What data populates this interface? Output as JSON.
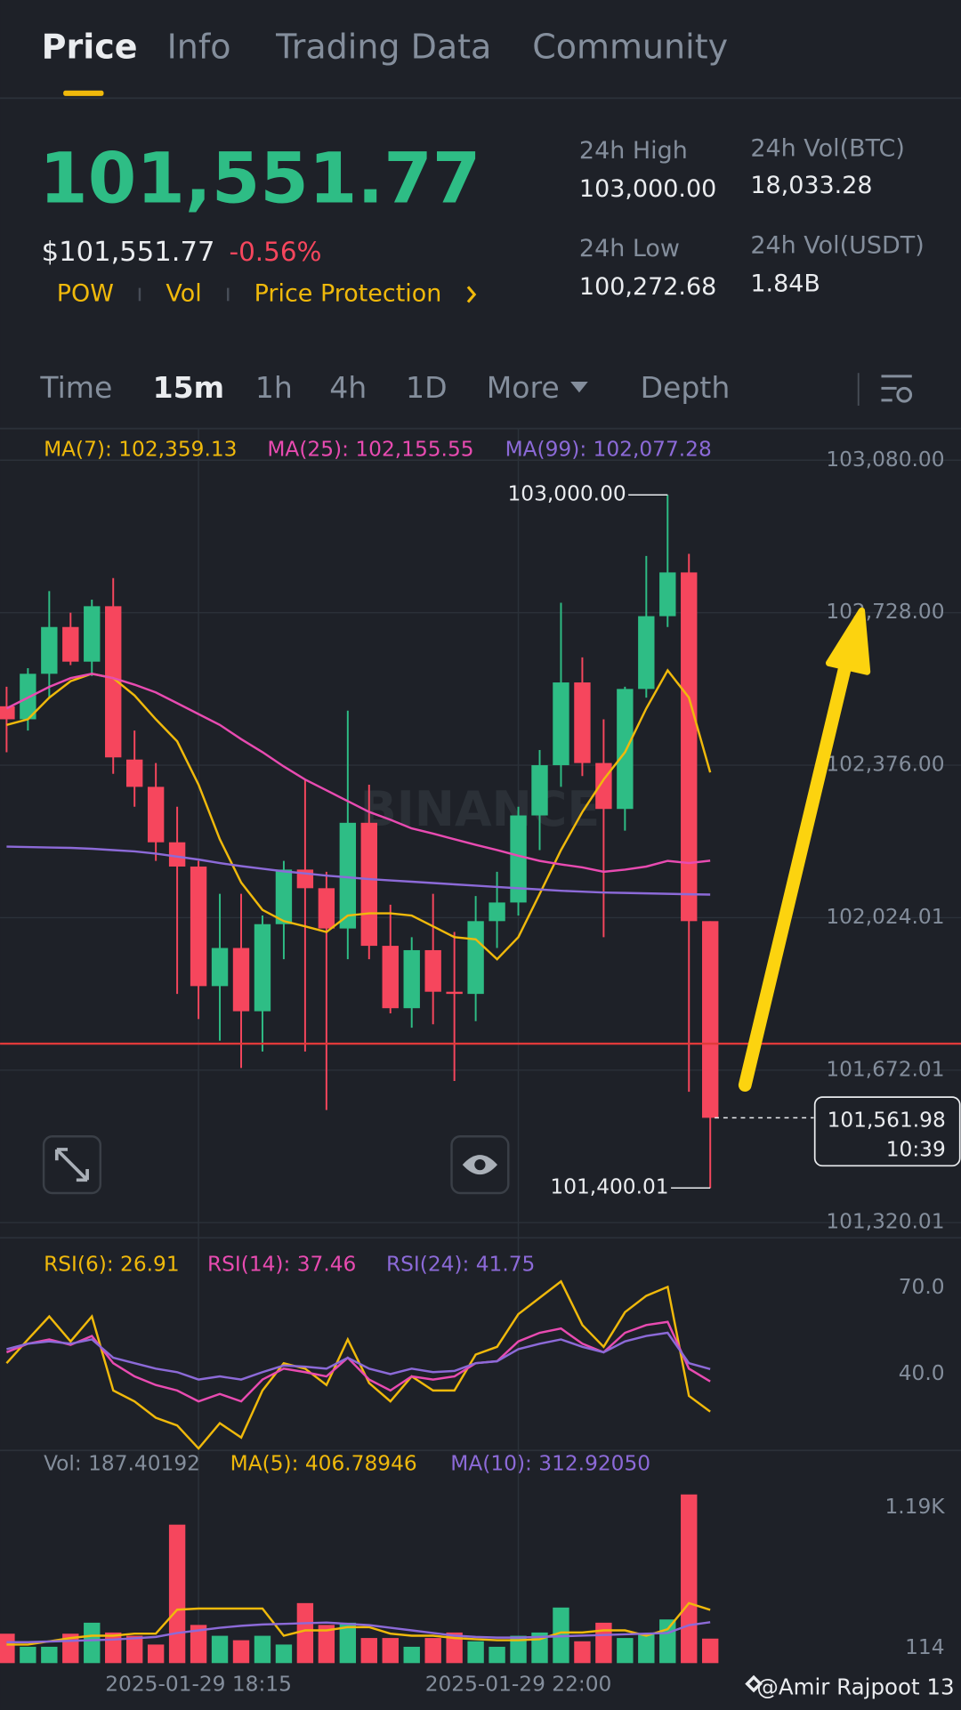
{
  "tabs": [
    "Price",
    "Info",
    "Trading Data",
    "Community"
  ],
  "price": {
    "last": "101,551.77",
    "usd": "$101,551.77",
    "change": "-0.56%"
  },
  "tags": [
    "POW",
    "Vol",
    "Price Protection"
  ],
  "stats": [
    {
      "label": "24h High",
      "value": "103,000.00"
    },
    {
      "label": "24h Low",
      "value": "100,272.68"
    },
    {
      "label": "24h Vol(BTC)",
      "value": "18,033.28"
    },
    {
      "label": "24h Vol(USDT)",
      "value": "1.84B"
    }
  ],
  "intervals": [
    "Time",
    "15m",
    "1h",
    "4h",
    "1D",
    "More",
    "Depth"
  ],
  "watermark": "BINANCE",
  "credit": "@Amir Rajpoot 13",
  "chart_data": [
    {
      "type": "candlestick",
      "up_color": "#2ebd85",
      "down_color": "#f6465d",
      "ohlc": {
        "open": [
          102512,
          102482,
          102587,
          102695,
          102615,
          102743,
          102389,
          102326,
          102198,
          102142,
          101866,
          101954,
          101808,
          102009,
          102135,
          102092,
          101999,
          102243,
          101959,
          101815,
          101949,
          101853,
          101848,
          102016,
          102059,
          102260,
          102376,
          102567,
          102381,
          102275,
          102552,
          102720,
          102821,
          102016
        ],
        "high": [
          102557,
          102600,
          102778,
          102728,
          102758,
          102808,
          102456,
          102381,
          102280,
          102155,
          102079,
          102079,
          102029,
          102155,
          102343,
          102130,
          102502,
          102331,
          102054,
          101979,
          102079,
          101991,
          102074,
          102130,
          102280,
          102411,
          102751,
          102625,
          102482,
          102557,
          102859,
          103000,
          102864,
          102016
        ],
        "low": [
          102406,
          102456,
          102532,
          102607,
          102582,
          102356,
          102280,
          102155,
          101848,
          101790,
          101740,
          101677,
          101715,
          101928,
          101715,
          101580,
          101928,
          101928,
          101803,
          101770,
          101778,
          101647,
          101785,
          101954,
          102029,
          102180,
          102326,
          102351,
          101979,
          102225,
          102532,
          102695,
          101622,
          101400.01
        ],
        "close": [
          102482,
          102587,
          102695,
          102615,
          102743,
          102394,
          102326,
          102198,
          102142,
          101866,
          101954,
          101808,
          102009,
          102135,
          102092,
          101999,
          102243,
          101959,
          101815,
          101949,
          101853,
          101848,
          102016,
          102059,
          102260,
          102376,
          102567,
          102381,
          102275,
          102552,
          102720,
          102821,
          102016,
          101561.98
        ]
      },
      "series": [
        {
          "name": "MA(7): 102,359.13",
          "color": "#f0b90b",
          "values": [
            102469,
            102482,
            102532,
            102570,
            102587,
            102577,
            102537,
            102482,
            102431,
            102331,
            102205,
            102105,
            102042,
            102016,
            102004,
            101991,
            102029,
            102034,
            102034,
            102029,
            102004,
            101979,
            101974,
            101928,
            101979,
            102079,
            102180,
            102268,
            102343,
            102406,
            102507,
            102595,
            102532,
            102359.13
          ]
        },
        {
          "name": "MA(25): 102,155.55",
          "color": "#e84bb1",
          "values": [
            102507,
            102532,
            102557,
            102577,
            102587,
            102577,
            102562,
            102544,
            102519,
            102494,
            102469,
            102436,
            102406,
            102373,
            102343,
            102318,
            102293,
            102268,
            102250,
            102230,
            102218,
            102205,
            102192,
            102180,
            102167,
            102155,
            102147,
            102140,
            102130,
            102135,
            102142,
            102155,
            102150,
            102155.55
          ]
        },
        {
          "name": "MA(99): 102,077.28",
          "color": "#8c6ad8",
          "values": [
            102188,
            102187,
            102186,
            102185,
            102183,
            102180,
            102177,
            102172,
            102165,
            102158,
            102150,
            102143,
            102137,
            102131,
            102126,
            102121,
            102117,
            102113,
            102110,
            102107,
            102104,
            102101,
            102098,
            102095,
            102092,
            102089,
            102086,
            102084,
            102082,
            102081,
            102080,
            102079,
            102078,
            102077.28
          ]
        }
      ],
      "annotations": [
        "103,000.00",
        "101,400.01"
      ],
      "last_price": {
        "label": "101,561.98",
        "time": "10:39"
      },
      "ylim": [
        101285,
        103148
      ],
      "yticks": [
        {
          "value": 103080,
          "label": "103,080.00"
        },
        {
          "value": 102728,
          "label": "102,728.00"
        },
        {
          "value": 102376,
          "label": "102,376.00"
        },
        {
          "value": 102024.01,
          "label": "102,024.01"
        },
        {
          "value": 101672.01,
          "label": "101,672.01"
        },
        {
          "value": 101320.01,
          "label": "101,320.01"
        }
      ],
      "grid": true
    },
    {
      "type": "line",
      "series": [
        {
          "name": "RSI(6): 26.91",
          "color": "#f0b90b",
          "values": [
            43.8,
            52.1,
            60.1,
            51.4,
            60.1,
            34.3,
            30.5,
            24.8,
            22.1,
            14.1,
            22.9,
            17.9,
            34.3,
            43.8,
            41.9,
            36.2,
            52.1,
            36.9,
            30.5,
            39.2,
            34.3,
            34.3,
            46.8,
            49.5,
            60.9,
            66.6,
            72.3,
            57.1,
            49.5,
            61.6,
            67.3,
            70.4,
            32.4,
            26.91
          ]
        },
        {
          "name": "RSI(14): 37.46",
          "color": "#e84bb1",
          "values": [
            47.6,
            50.6,
            52.1,
            50.2,
            53.3,
            43.8,
            39.2,
            36.2,
            34.3,
            30.5,
            33.1,
            30.5,
            38.1,
            41.9,
            40.7,
            39.2,
            45.7,
            38.1,
            34.3,
            39.2,
            38.1,
            39.2,
            43.8,
            44.5,
            51.4,
            54.4,
            55.9,
            50.6,
            47.6,
            54.4,
            57.1,
            58.2,
            41.9,
            37.46
          ]
        },
        {
          "name": "RSI(24): 41.75",
          "color": "#8c6ad8",
          "values": [
            48.7,
            50.6,
            51.4,
            50.6,
            52.1,
            45.7,
            43.8,
            41.9,
            40.7,
            38.1,
            39.2,
            38.1,
            40.7,
            43.0,
            42.6,
            41.9,
            45.7,
            41.9,
            40.0,
            41.9,
            40.7,
            41.1,
            43.8,
            44.5,
            48.7,
            50.6,
            52.1,
            49.5,
            47.6,
            51.4,
            53.3,
            54.4,
            43.8,
            41.75
          ]
        }
      ],
      "ylim": [
        13.4,
        85.6
      ],
      "yticks": [
        {
          "value": 70,
          "label": "70.0"
        },
        {
          "value": 40,
          "label": "40.0"
        }
      ]
    },
    {
      "type": "bar",
      "categories": [
        null,
        null,
        null,
        null,
        null,
        null,
        null,
        null,
        null,
        "2025-01-29 18:15",
        null,
        null,
        null,
        null,
        null,
        null,
        null,
        null,
        null,
        null,
        null,
        null,
        null,
        null,
        "2025-01-29 22:00",
        null,
        null,
        null,
        null,
        null,
        null,
        null,
        null,
        null
      ],
      "series": [
        {
          "name": "Vol: 187.40192",
          "values": [
            225,
            125,
            125,
            225,
            309,
            234,
            209,
            142,
            1059,
            292,
            209,
            175,
            209,
            142,
            459,
            292,
            309,
            192,
            192,
            125,
            192,
            234,
            167,
            125,
            209,
            234,
            425,
            167,
            309,
            192,
            225,
            334,
            1290,
            187.40192
          ]
        },
        {
          "name": "MA(5): 406.78946",
          "color": "#f0b90b",
          "values": [
            142,
            142,
            167,
            192,
            209,
            209,
            225,
            225,
            409,
            417,
            417,
            417,
            417,
            209,
            250,
            250,
            275,
            275,
            225,
            209,
            209,
            192,
            183,
            175,
            175,
            183,
            234,
            234,
            250,
            250,
            209,
            259,
            459,
            406.78946
          ]
        },
        {
          "name": "MA(10): 312.92050",
          "color": "#8c6ad8",
          "values": [
            160,
            160,
            165,
            170,
            175,
            180,
            190,
            200,
            230,
            250,
            270,
            285,
            295,
            300,
            305,
            310,
            300,
            290,
            270,
            250,
            230,
            210,
            200,
            195,
            195,
            200,
            205,
            210,
            215,
            220,
            225,
            230,
            290,
            312.9205
          ]
        }
      ],
      "ylim": [
        0,
        1393
      ],
      "yticks": [
        {
          "value": 1190,
          "label": "1.19K"
        },
        114
      ]
    }
  ]
}
